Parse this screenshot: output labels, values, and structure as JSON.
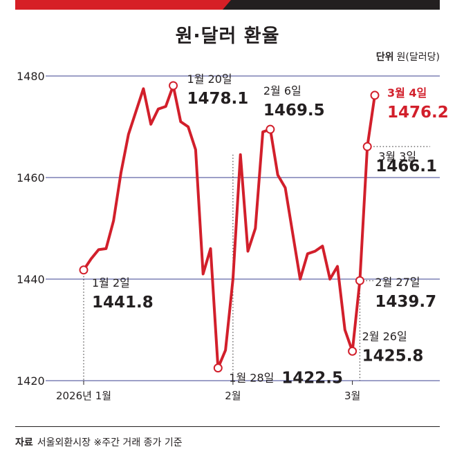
{
  "header": {
    "title": "원·달러 환율",
    "unit_label": "단위",
    "unit_value": "원(달러당)"
  },
  "footer": {
    "source_label": "자료",
    "source_text": "서울외환시장 ※주간 거래 종가 기준"
  },
  "colors": {
    "line": "#d21f2b",
    "accent_text": "#d21f2b",
    "grid": "#3a3f8f",
    "text": "#231f20"
  },
  "chart_data": {
    "type": "line",
    "title": "원·달러 환율",
    "xlabel": "",
    "ylabel": "",
    "ylim": [
      1420,
      1480
    ],
    "yticks": [
      1420,
      1440,
      1460,
      1480
    ],
    "xticks": [
      {
        "index": 0,
        "label": "2026년 1월"
      },
      {
        "index": 20,
        "label": "2월"
      },
      {
        "index": 36,
        "label": "3월"
      }
    ],
    "grid": "horizontal",
    "series": [
      {
        "values": [
          1441.8,
          1444.0,
          1445.8,
          1446.0,
          1451.5,
          1461.0,
          1468.5,
          1473.0,
          1477.5,
          1470.5,
          1473.5,
          1474.0,
          1478.1,
          1471.0,
          1470.0,
          1465.5,
          1441.0,
          1446.0,
          1422.5,
          1426.0,
          1440.0,
          1464.5,
          1445.5,
          1450.0,
          1469.0,
          1469.5,
          1460.5,
          1458.0,
          1449.0,
          1440.0,
          1445.0,
          1445.5,
          1446.5,
          1440.0,
          1442.5,
          1430.0,
          1425.8,
          1439.7,
          1466.1,
          1476.2
        ]
      }
    ],
    "annotations": [
      {
        "index": 0,
        "date": "1월 2일",
        "value": "1441.8",
        "color": "dark"
      },
      {
        "index": 12,
        "date": "1월 20일",
        "value": "1478.1",
        "color": "dark"
      },
      {
        "index": 18,
        "date": "1월 28일",
        "value": "1422.5",
        "color": "dark"
      },
      {
        "index": 25,
        "date": "2월 6일",
        "value": "1469.5",
        "color": "dark"
      },
      {
        "index": 36,
        "date": "2월 26일",
        "value": "1425.8",
        "color": "dark"
      },
      {
        "index": 37,
        "date": "2월 27일",
        "value": "1439.7",
        "color": "dark"
      },
      {
        "index": 38,
        "date": "3월 3일",
        "value": "1466.1",
        "color": "dark"
      },
      {
        "index": 39,
        "date": "3월 4일",
        "value": "1476.2",
        "color": "red"
      }
    ]
  }
}
